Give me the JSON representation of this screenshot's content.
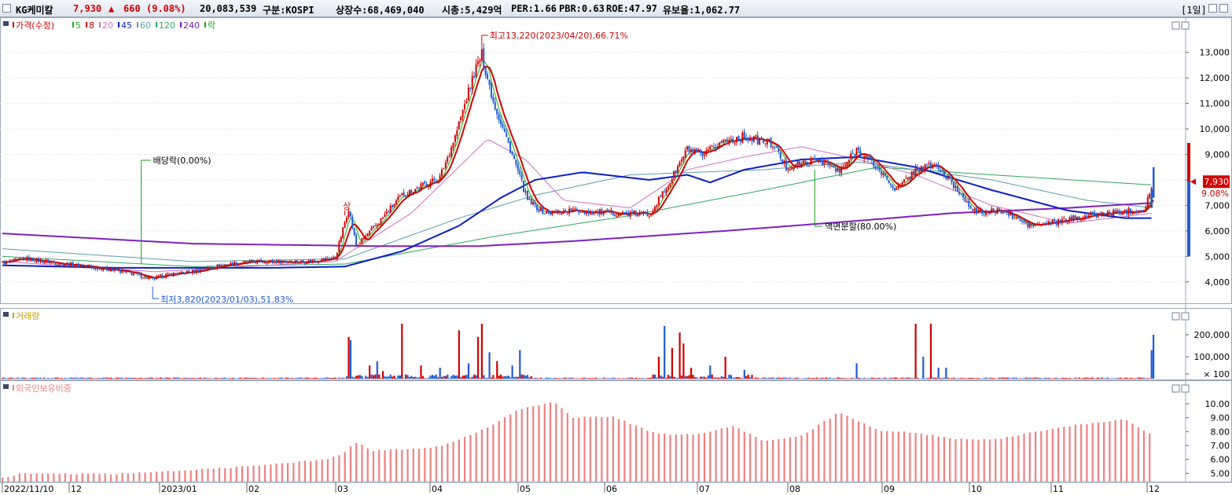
{
  "header": {
    "name": "KG케미칼",
    "price": "7,930",
    "change_arrow": "▲",
    "change": "660",
    "change_pct": "(9.08%)",
    "volume": "20,083,539",
    "market": "구분:KOSPI",
    "shares": "상장수:68,469,040",
    "mcap": "시총:5,429억",
    "per": "PER:1.66",
    "pbr": "PBR:0.63",
    "roe": "ROE:47.97",
    "float": "유보율:1,062.77",
    "period": "[1일]",
    "up_color": "#d40000",
    "down_color": "#1f5bd6"
  },
  "price_legend": [
    {
      "label": "가격(수정)",
      "color": "#d40000"
    },
    {
      "label": "5",
      "color": "#18b018"
    },
    {
      "label": "8",
      "color": "#d40000"
    },
    {
      "label": "20",
      "color": "#d070c0"
    },
    {
      "label": "45",
      "color": "#0a1ec8"
    },
    {
      "label": "60",
      "color": "#5aa0a8"
    },
    {
      "label": "120",
      "color": "#30a860"
    },
    {
      "label": "240",
      "color": "#8020c0"
    },
    {
      "label": "락",
      "color": "#18b018"
    }
  ],
  "volume_legend": "거래량",
  "foreign_legend": "외국인보유비중",
  "annotations": {
    "high": "최고13,220(2023/04/20),66.71%",
    "low": "최저3,820(2023/01/03),51.83%",
    "dividend": "배당락(0.00%)",
    "split": "액면분할(80.00%)",
    "limit_up": "상",
    "last_price_box": "7,930",
    "last_pct": "9.08%"
  },
  "x_axis_labels": [
    "2022/11/10",
    "12",
    "2023/01",
    "02",
    "03",
    "04",
    "05",
    "06",
    "07",
    "08",
    "09",
    "10",
    "11",
    "12"
  ],
  "price_axis_labels": [
    "13,000",
    "12,000",
    "11,000",
    "10,000",
    "9,000",
    "8,000",
    "7,000",
    "6,000",
    "5,000",
    "4,000"
  ],
  "volume_axis_labels": [
    "200,000",
    "100,000",
    "× 100"
  ],
  "foreign_axis_labels": [
    "10.00",
    "9.00",
    "8.00",
    "7.00",
    "6.00",
    "5.00"
  ],
  "chart_data": [
    {
      "type": "line",
      "title": "가격(수정)",
      "x_start": "2022/11/10",
      "x_end": "2023/12",
      "ylim": [
        3500,
        13700
      ],
      "price_knots": [
        [
          0,
          4750
        ],
        [
          12,
          4900
        ],
        [
          28,
          4750
        ],
        [
          45,
          4600
        ],
        [
          60,
          4450
        ],
        [
          70,
          4300
        ],
        [
          79,
          4100
        ],
        [
          84,
          4250
        ],
        [
          100,
          4400
        ],
        [
          118,
          4700
        ],
        [
          135,
          4800
        ],
        [
          160,
          4800
        ],
        [
          175,
          4950
        ],
        [
          182,
          6900
        ],
        [
          186,
          5400
        ],
        [
          195,
          6100
        ],
        [
          210,
          7400
        ],
        [
          230,
          8100
        ],
        [
          238,
          9700
        ],
        [
          248,
          12200
        ],
        [
          252,
          12900
        ],
        [
          258,
          11100
        ],
        [
          268,
          9000
        ],
        [
          276,
          7200
        ],
        [
          285,
          6700
        ],
        [
          300,
          6800
        ],
        [
          320,
          6700
        ],
        [
          340,
          6650
        ],
        [
          350,
          7800
        ],
        [
          360,
          9200
        ],
        [
          368,
          8900
        ],
        [
          378,
          9500
        ],
        [
          390,
          9700
        ],
        [
          405,
          9400
        ],
        [
          412,
          8500
        ],
        [
          430,
          8800
        ],
        [
          440,
          8300
        ],
        [
          449,
          9200
        ],
        [
          458,
          8600
        ],
        [
          470,
          7600
        ],
        [
          480,
          8400
        ],
        [
          490,
          8600
        ],
        [
          502,
          7600
        ],
        [
          512,
          6700
        ],
        [
          525,
          6800
        ],
        [
          540,
          6200
        ],
        [
          555,
          6350
        ],
        [
          570,
          6600
        ],
        [
          600,
          6850
        ],
        [
          605,
          7930
        ]
      ],
      "ma_knots": {
        "ma45": [
          [
            0,
            4650
          ],
          [
            60,
            4550
          ],
          [
            100,
            4550
          ],
          [
            140,
            4550
          ],
          [
            180,
            4600
          ],
          [
            210,
            5200
          ],
          [
            240,
            6200
          ],
          [
            262,
            7300
          ],
          [
            280,
            8000
          ],
          [
            305,
            8300
          ],
          [
            340,
            8000
          ],
          [
            360,
            8200
          ],
          [
            372,
            7900
          ],
          [
            390,
            8400
          ],
          [
            420,
            8800
          ],
          [
            450,
            8900
          ],
          [
            480,
            8500
          ],
          [
            520,
            7600
          ],
          [
            560,
            6800
          ],
          [
            590,
            6500
          ],
          [
            605,
            6500
          ]
        ],
        "ma240": [
          [
            0,
            5900
          ],
          [
            100,
            5500
          ],
          [
            200,
            5400
          ],
          [
            250,
            5400
          ],
          [
            300,
            5600
          ],
          [
            380,
            6000
          ],
          [
            450,
            6400
          ],
          [
            500,
            6700
          ],
          [
            560,
            6900
          ],
          [
            605,
            7100
          ]
        ],
        "ma120": [
          [
            0,
            5000
          ],
          [
            100,
            4600
          ],
          [
            180,
            4700
          ],
          [
            260,
            5800
          ],
          [
            330,
            6600
          ],
          [
            400,
            7600
          ],
          [
            460,
            8500
          ],
          [
            520,
            8200
          ],
          [
            605,
            7800
          ]
        ],
        "ma60": [
          [
            0,
            5300
          ],
          [
            100,
            4800
          ],
          [
            180,
            4900
          ],
          [
            240,
            6500
          ],
          [
            280,
            7400
          ],
          [
            330,
            8200
          ],
          [
            400,
            8400
          ],
          [
            450,
            8700
          ],
          [
            520,
            8000
          ],
          [
            570,
            7200
          ],
          [
            605,
            6900
          ]
        ],
        "ma20": [
          [
            0,
            4800
          ],
          [
            80,
            4400
          ],
          [
            175,
            4800
          ],
          [
            215,
            6700
          ],
          [
            255,
            9600
          ],
          [
            275,
            8800
          ],
          [
            295,
            7200
          ],
          [
            330,
            6900
          ],
          [
            360,
            8400
          ],
          [
            390,
            8900
          ],
          [
            420,
            9300
          ],
          [
            450,
            8800
          ],
          [
            480,
            8200
          ],
          [
            520,
            7000
          ],
          [
            560,
            6300
          ],
          [
            605,
            6700
          ]
        ]
      },
      "note": "prices in KRW; x in trading-day index (approximate)"
    },
    {
      "type": "bar",
      "title": "거래량",
      "unit": "× 100",
      "ylim": [
        0,
        250000
      ],
      "spikes": [
        [
          182,
          190000,
          "up"
        ],
        [
          183,
          175000,
          "down"
        ],
        [
          193,
          60000,
          "up"
        ],
        [
          197,
          80000,
          "down"
        ],
        [
          200,
          35000,
          "up"
        ],
        [
          210,
          250000,
          "up"
        ],
        [
          220,
          60000,
          "up"
        ],
        [
          230,
          50000,
          "down"
        ],
        [
          240,
          220000,
          "up"
        ],
        [
          245,
          70000,
          "down"
        ],
        [
          250,
          190000,
          "up"
        ],
        [
          252,
          250000,
          "up"
        ],
        [
          256,
          120000,
          "down"
        ],
        [
          260,
          80000,
          "up"
        ],
        [
          268,
          60000,
          "down"
        ],
        [
          272,
          130000,
          "down"
        ],
        [
          345,
          100000,
          "up"
        ],
        [
          348,
          240000,
          "down"
        ],
        [
          352,
          140000,
          "up"
        ],
        [
          356,
          210000,
          "up"
        ],
        [
          358,
          160000,
          "up"
        ],
        [
          362,
          50000,
          "up"
        ],
        [
          372,
          60000,
          "down"
        ],
        [
          380,
          100000,
          "up"
        ],
        [
          390,
          40000,
          "down"
        ],
        [
          449,
          70000,
          "down"
        ],
        [
          480,
          250000,
          "up"
        ],
        [
          484,
          100000,
          "down"
        ],
        [
          488,
          290000,
          "up"
        ],
        [
          492,
          50000,
          "down"
        ],
        [
          496,
          50000,
          "down"
        ],
        [
          604,
          130000,
          "down"
        ],
        [
          605,
          200000,
          "down"
        ]
      ]
    },
    {
      "type": "bar",
      "title": "외국인보유비중",
      "ylim": [
        4.4,
        10.9
      ],
      "knots": [
        [
          0,
          4.65
        ],
        [
          10,
          5.0
        ],
        [
          60,
          4.95
        ],
        [
          120,
          5.4
        ],
        [
          170,
          6.0
        ],
        [
          180,
          6.5
        ],
        [
          185,
          7.3
        ],
        [
          195,
          6.6
        ],
        [
          230,
          6.9
        ],
        [
          255,
          8.3
        ],
        [
          270,
          9.5
        ],
        [
          290,
          10.2
        ],
        [
          300,
          9.0
        ],
        [
          320,
          9.1
        ],
        [
          345,
          7.8
        ],
        [
          365,
          7.8
        ],
        [
          385,
          8.4
        ],
        [
          400,
          7.3
        ],
        [
          420,
          7.7
        ],
        [
          440,
          9.4
        ],
        [
          460,
          8.1
        ],
        [
          480,
          7.9
        ],
        [
          500,
          7.5
        ],
        [
          520,
          7.4
        ],
        [
          560,
          8.4
        ],
        [
          590,
          8.9
        ],
        [
          605,
          7.7
        ]
      ]
    }
  ]
}
